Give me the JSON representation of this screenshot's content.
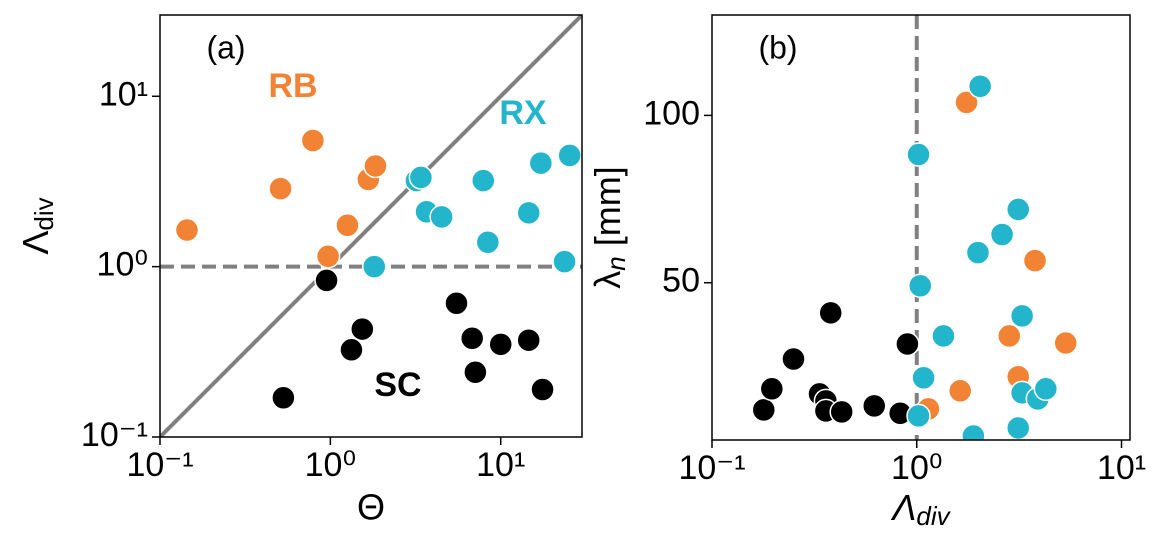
{
  "chart_data": [
    {
      "type": "scatter",
      "label": "(a)",
      "xlabel": "Θ",
      "ylabel": {
        "text": "Λ",
        "sub": "div"
      },
      "xscale": "log",
      "yscale": "log",
      "xlim": [
        0.1,
        30
      ],
      "ylim": [
        0.1,
        30
      ],
      "xticks": [
        {
          "value": 0.1,
          "label": "10⁻¹"
        },
        {
          "value": 1,
          "label": "10⁰"
        },
        {
          "value": 10,
          "label": "10¹"
        }
      ],
      "yticks": [
        {
          "value": 0.1,
          "label": "10⁻¹"
        },
        {
          "value": 1,
          "label": "10⁰"
        },
        {
          "value": 10,
          "label": "10¹"
        }
      ],
      "diagonal": true,
      "hline": 1,
      "series": [
        {
          "name": "RB",
          "color": "#f28334",
          "x": [
            0.144,
            0.51,
            0.79,
            0.97,
            1.26,
            1.67,
            1.84
          ],
          "values": [
            1.64,
            2.87,
            5.5,
            1.15,
            1.75,
            3.25,
            3.9
          ]
        },
        {
          "name": "RX",
          "color": "#22b5cc",
          "x": [
            1.81,
            3.2,
            3.4,
            3.67,
            4.5,
            7.9,
            8.4,
            14.6,
            17.2,
            25.4,
            23.7
          ],
          "values": [
            1.0,
            3.2,
            3.34,
            2.1,
            1.96,
            3.2,
            1.39,
            2.07,
            4.05,
            4.5,
            1.07
          ]
        },
        {
          "name": "SC",
          "color": "#000000",
          "x": [
            0.53,
            0.95,
            1.33,
            1.54,
            5.5,
            6.8,
            7.1,
            10,
            14.6,
            17.6
          ],
          "values": [
            0.17,
            0.83,
            0.325,
            0.43,
            0.61,
            0.38,
            0.24,
            0.35,
            0.37,
            0.19
          ]
        }
      ]
    },
    {
      "type": "scatter",
      "label": "(b)",
      "xlabel": {
        "text": "Λ",
        "sub": "div"
      },
      "ylabel": {
        "text": "λ",
        "sub": "n",
        "rest": " [mm]"
      },
      "xscale": "log",
      "xlim": [
        0.1,
        11
      ],
      "ylim": [
        3,
        130
      ],
      "xticks": [
        {
          "value": 0.1,
          "label": "10⁻¹"
        },
        {
          "value": 1,
          "label": "10⁰"
        },
        {
          "value": 10,
          "label": "10¹"
        }
      ],
      "yticks": [
        50,
        100
      ],
      "vline": 1,
      "series": [
        {
          "color": "#000000",
          "x": [
            0.179,
            0.196,
            0.25,
            0.335,
            0.36,
            0.36,
            0.43,
            0.38,
            0.62,
            0.83,
            0.9
          ],
          "values": [
            12,
            18.3,
            27.2,
            16.8,
            14.7,
            11.7,
            11.4,
            41,
            13.2,
            11,
            31.7
          ]
        },
        {
          "color": "#f28334",
          "x": [
            1.75,
            1.14,
            1.63,
            3.78,
            2.83,
            3.13,
            5.34
          ],
          "values": [
            103.9,
            12.3,
            17.7,
            56.6,
            34.1,
            21.9,
            32
          ]
        },
        {
          "color": "#22b5cc",
          "x": [
            2.04,
            1.02,
            1.04,
            1.35,
            1.08,
            1.02,
            1.99,
            2.61,
            3.13,
            3.27,
            3.27,
            3.9,
            4.27,
            1.89,
            3.13
          ],
          "values": [
            108.7,
            88.3,
            49.1,
            34.1,
            21.6,
            10.2,
            59,
            64.4,
            71.9,
            40.1,
            17.1,
            15.3,
            18.3,
            4.2,
            6.6
          ]
        }
      ]
    }
  ]
}
